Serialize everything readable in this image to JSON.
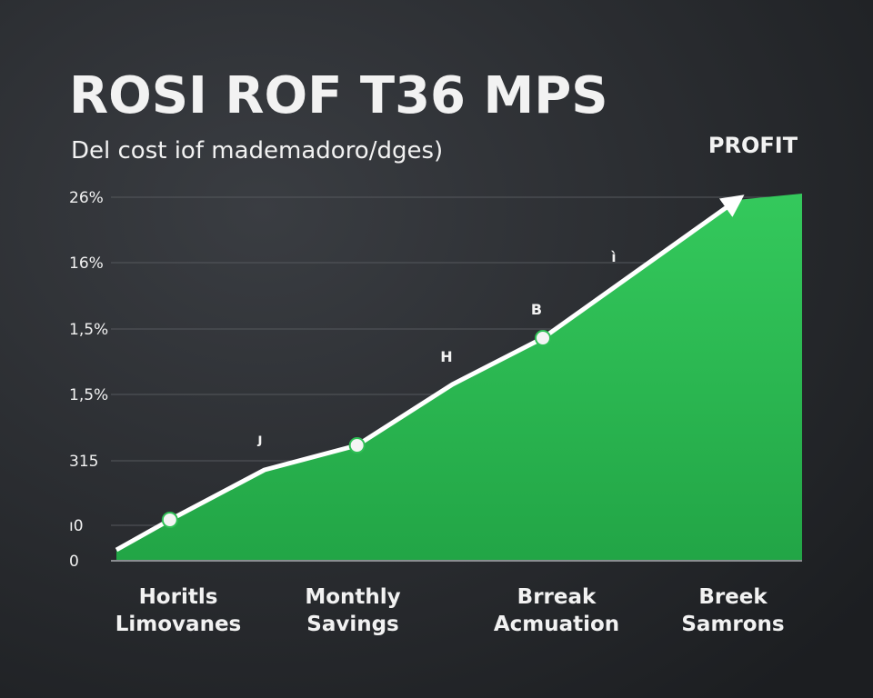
{
  "chart_data": {
    "type": "area-line",
    "title": "ROSI ROF T36 MPS",
    "subtitle": "Del cost iof mademadoro/dges)",
    "y_axis_labels": [
      "26%",
      "16%",
      "1,5%",
      "1,5%",
      "315",
      "ı0",
      "0"
    ],
    "categories": [
      [
        "Horitls",
        "Limovanes"
      ],
      [
        "Monthly",
        "Savings"
      ],
      [
        "Brreak",
        "Acmuation"
      ],
      [
        "Breek",
        "Samrons"
      ]
    ],
    "xlim": [
      0,
      100
    ],
    "ylim": [
      0,
      100
    ],
    "area": {
      "color": "#2fbf55",
      "x": [
        0,
        7.8,
        21.6,
        35.1,
        49,
        62.2,
        90.5,
        100
      ],
      "values": [
        3,
        11.25,
        25,
        31.75,
        48.5,
        61.25,
        99.25,
        101
      ]
    },
    "line": {
      "color": "#ffffff",
      "x": [
        0,
        7.8,
        21.6,
        35.1,
        49,
        62.2,
        90.5
      ],
      "values": [
        3,
        11.25,
        25,
        31.75,
        48.5,
        61.25,
        99.25
      ],
      "markers": [
        false,
        true,
        false,
        true,
        false,
        true,
        false
      ],
      "arrow": true
    },
    "annotations": [
      "PROFIT",
      "B",
      "H",
      "ì",
      "ȷ"
    ],
    "grid": true
  }
}
